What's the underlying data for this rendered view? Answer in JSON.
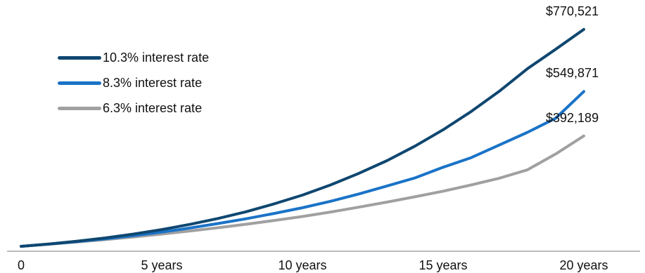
{
  "chart_data": {
    "type": "line",
    "x": [
      0,
      1,
      2,
      3,
      4,
      5,
      6,
      7,
      8,
      9,
      10,
      11,
      12,
      13,
      14,
      15,
      16,
      17,
      18,
      19,
      20
    ],
    "series": [
      {
        "name": "10.3% interest rate",
        "color": "#0f4770",
        "values": [
          0,
          8500,
          18500,
          30000,
          43500,
          59500,
          78000,
          99000,
          123000,
          151000,
          182000,
          218000,
          259000,
          304000,
          356000,
          414000,
          479000,
          551000,
          631000,
          700000,
          770521
        ],
        "end_label": "$770,521"
      },
      {
        "name": "8.3% interest rate",
        "color": "#1a73c7",
        "values": [
          0,
          8000,
          17000,
          27000,
          38000,
          50500,
          65000,
          81000,
          98000,
          117000,
          137000,
          160000,
          186000,
          214000,
          243000,
          281000,
          315000,
          360000,
          405000,
          455000,
          549871
        ],
        "end_label": "$549,871"
      },
      {
        "name": "6.3% interest rate",
        "color": "#a0a0a0",
        "values": [
          0,
          7500,
          15500,
          24000,
          33500,
          43500,
          54500,
          66000,
          78500,
          92000,
          106000,
          122000,
          139000,
          157000,
          176000,
          196000,
          218000,
          242000,
          272000,
          328000,
          392189
        ],
        "end_label": "$392,189"
      }
    ],
    "x_tick_values": [
      0,
      5,
      10,
      15,
      20
    ],
    "x_tick_labels": [
      "0",
      "5 years",
      "10 years",
      "15 years",
      "20 years"
    ],
    "xlim": [
      0,
      20
    ],
    "ylim": [
      0,
      830000
    ],
    "grid": false,
    "legend_position": "top-left"
  }
}
